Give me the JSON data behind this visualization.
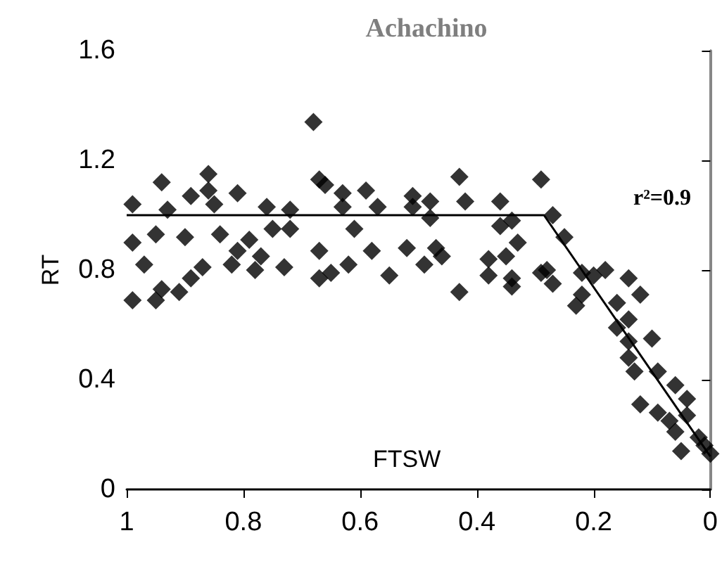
{
  "chart_data": {
    "type": "scatter",
    "title": "Achachino",
    "xlabel": "FTSW",
    "ylabel": "RT",
    "annotations": [
      "r²=0.9"
    ],
    "xlim": [
      1,
      0
    ],
    "xticks": [
      1,
      0.8,
      0.6,
      0.4,
      0.2,
      0
    ],
    "ylim": [
      0,
      1.6
    ],
    "yticks": [
      0,
      0.4,
      0.8,
      1.2,
      1.6
    ],
    "grid": false,
    "series": [
      {
        "color": "#000000",
        "marker": "diamond",
        "x": [
          0.99,
          0.99,
          0.97,
          0.99,
          0.94,
          0.95,
          0.93,
          0.94,
          0.95,
          0.89,
          0.9,
          0.91,
          0.89,
          0.87,
          0.86,
          0.86,
          0.85,
          0.84,
          0.81,
          0.81,
          0.82,
          0.79,
          0.78,
          0.77,
          0.76,
          0.75,
          0.73,
          0.72,
          0.72,
          0.68,
          0.67,
          0.66,
          0.67,
          0.67,
          0.65,
          0.63,
          0.63,
          0.62,
          0.61,
          0.59,
          0.57,
          0.58,
          0.55,
          0.52,
          0.51,
          0.51,
          0.49,
          0.48,
          0.48,
          0.47,
          0.46,
          0.43,
          0.42,
          0.43,
          0.38,
          0.38,
          0.36,
          0.36,
          0.34,
          0.33,
          0.35,
          0.34,
          0.34,
          0.29,
          0.29,
          0.27,
          0.25,
          0.28,
          0.27,
          0.22,
          0.22,
          0.2,
          0.18,
          0.23,
          0.14,
          0.12,
          0.16,
          0.16,
          0.14,
          0.14,
          0.1,
          0.14,
          0.13,
          0.09,
          0.12,
          0.09,
          0.06,
          0.04,
          0.07,
          0.06,
          0.04,
          0.05,
          0.02,
          0.01,
          0.0
        ],
        "values": [
          1.04,
          0.9,
          0.82,
          0.69,
          1.12,
          0.93,
          1.02,
          0.73,
          0.69,
          1.07,
          0.92,
          0.72,
          0.77,
          0.81,
          1.15,
          1.09,
          1.04,
          0.93,
          1.08,
          0.87,
          0.82,
          0.91,
          0.8,
          0.85,
          1.03,
          0.95,
          0.81,
          1.02,
          0.95,
          1.34,
          1.13,
          1.11,
          0.87,
          0.77,
          0.79,
          1.08,
          1.03,
          0.82,
          0.95,
          1.09,
          1.03,
          0.87,
          0.78,
          0.88,
          1.07,
          1.03,
          0.82,
          1.05,
          0.99,
          0.88,
          0.85,
          1.14,
          1.05,
          0.72,
          0.84,
          0.78,
          1.05,
          0.96,
          0.98,
          0.9,
          0.85,
          0.77,
          0.74,
          1.13,
          0.79,
          1.0,
          0.92,
          0.8,
          0.75,
          0.79,
          0.71,
          0.78,
          0.8,
          0.67,
          0.77,
          0.71,
          0.68,
          0.59,
          0.62,
          0.54,
          0.55,
          0.48,
          0.43,
          0.43,
          0.31,
          0.28,
          0.38,
          0.33,
          0.25,
          0.21,
          0.27,
          0.14,
          0.19,
          0.16,
          0.13
        ]
      },
      {
        "type": "line",
        "color": "#000000",
        "marker": "none",
        "line_style": "solid",
        "x": [
          1,
          0.285,
          0
        ],
        "values": [
          1.0,
          1.0,
          0.12
        ]
      }
    ]
  }
}
